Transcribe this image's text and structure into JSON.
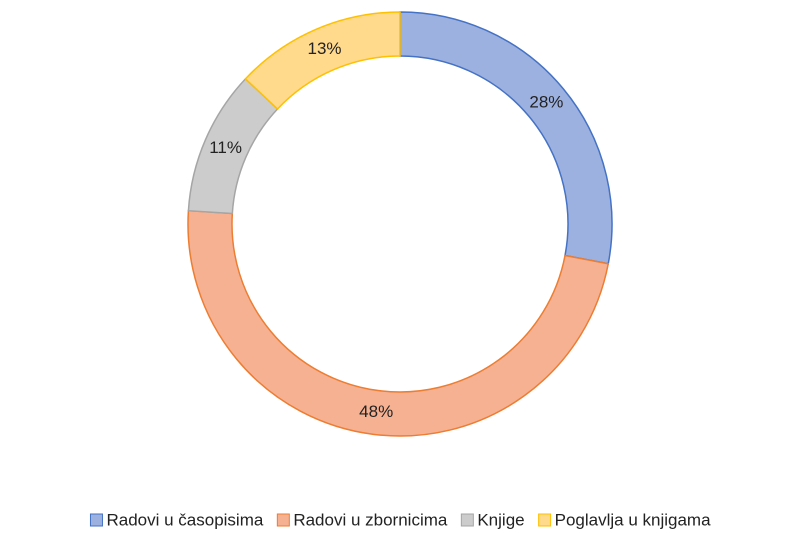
{
  "chart_data": {
    "type": "donut",
    "categories": [
      "Radovi u časopisima",
      "Radovi u zbornicima",
      "Knjige",
      "Poglavlja u knjigama"
    ],
    "values": [
      28,
      48,
      11,
      13
    ],
    "value_labels": [
      "28%",
      "48%",
      "11%",
      "13%"
    ],
    "colors": [
      "#9db1e0",
      "#f6b193",
      "#cccccc",
      "#ffd98c"
    ],
    "edge_colors": [
      "#4472c4",
      "#ed7d31",
      "#a5a5a5",
      "#ffc000"
    ],
    "legend": "bottom"
  }
}
